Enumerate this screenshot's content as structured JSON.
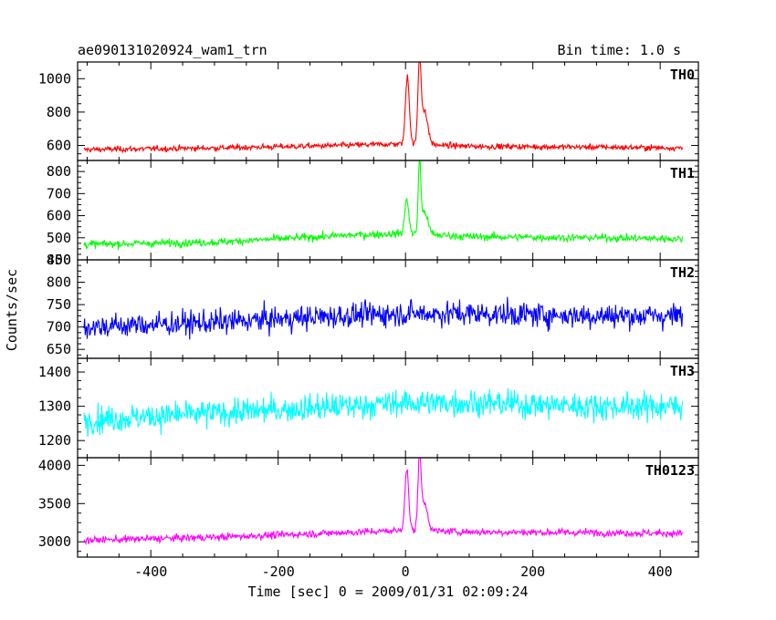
{
  "header": {
    "title": "ae090131020924_wam1_trn",
    "bin_time": "Bin time: 1.0 s"
  },
  "chart_data": {
    "type": "line",
    "xlabel": "Time [sec] 0 = 2009/01/31 02:09:24",
    "ylabel": "Counts/sec",
    "xlim": [
      -515,
      460
    ],
    "x_ticks": [
      -400,
      -200,
      0,
      200,
      400
    ],
    "panels": [
      {
        "name": "TH0",
        "color": "#ff0000",
        "ylim": [
          510,
          1100
        ],
        "y_ticks": [
          600,
          800,
          1000
        ],
        "x_range": [
          -505,
          435
        ],
        "baseline": [
          [
            -505,
            575
          ],
          [
            -300,
            585
          ],
          [
            -100,
            600
          ],
          [
            0,
            610
          ],
          [
            100,
            595
          ],
          [
            300,
            590
          ],
          [
            435,
            585
          ]
        ],
        "noise": 22,
        "peaks": [
          [
            3,
            1020,
            6
          ],
          [
            22,
            1090,
            5
          ],
          [
            30,
            800,
            10
          ]
        ]
      },
      {
        "name": "TH1",
        "color": "#00ff00",
        "ylim": [
          400,
          850
        ],
        "y_ticks": [
          400,
          500,
          600,
          700,
          800
        ],
        "x_range": [
          -505,
          435
        ],
        "baseline": [
          [
            -505,
            470
          ],
          [
            -300,
            480
          ],
          [
            -100,
            510
          ],
          [
            0,
            520
          ],
          [
            100,
            505
          ],
          [
            300,
            500
          ],
          [
            435,
            495
          ]
        ],
        "noise": 22,
        "peaks": [
          [
            2,
            680,
            6
          ],
          [
            22,
            840,
            4
          ],
          [
            30,
            620,
            10
          ]
        ]
      },
      {
        "name": "TH2",
        "color": "#0000ff",
        "ylim": [
          630,
          850
        ],
        "y_ticks": [
          650,
          700,
          750,
          800,
          850
        ],
        "x_range": [
          -505,
          435
        ],
        "baseline": [
          [
            -505,
            700
          ],
          [
            -300,
            710
          ],
          [
            -100,
            725
          ],
          [
            0,
            730
          ],
          [
            100,
            730
          ],
          [
            300,
            725
          ],
          [
            435,
            725
          ]
        ],
        "noise": 35,
        "peaks": []
      },
      {
        "name": "TH3",
        "color": "#00ffff",
        "ylim": [
          1150,
          1440
        ],
        "y_ticks": [
          1200,
          1300,
          1400
        ],
        "x_range": [
          -505,
          435
        ],
        "baseline": [
          [
            -505,
            1260
          ],
          [
            -300,
            1280
          ],
          [
            -100,
            1300
          ],
          [
            0,
            1310
          ],
          [
            100,
            1310
          ],
          [
            300,
            1300
          ],
          [
            435,
            1300
          ]
        ],
        "noise": 50,
        "peaks": []
      },
      {
        "name": "TH0123",
        "color": "#ff00ff",
        "ylim": [
          2800,
          4100
        ],
        "y_ticks": [
          3000,
          3500,
          4000
        ],
        "x_range": [
          -505,
          435
        ],
        "baseline": [
          [
            -505,
            3020
          ],
          [
            -300,
            3060
          ],
          [
            -100,
            3120
          ],
          [
            0,
            3150
          ],
          [
            100,
            3130
          ],
          [
            300,
            3120
          ],
          [
            435,
            3110
          ]
        ],
        "noise": 60,
        "peaks": [
          [
            2,
            3950,
            6
          ],
          [
            22,
            4080,
            5
          ],
          [
            30,
            3500,
            10
          ]
        ]
      }
    ]
  }
}
